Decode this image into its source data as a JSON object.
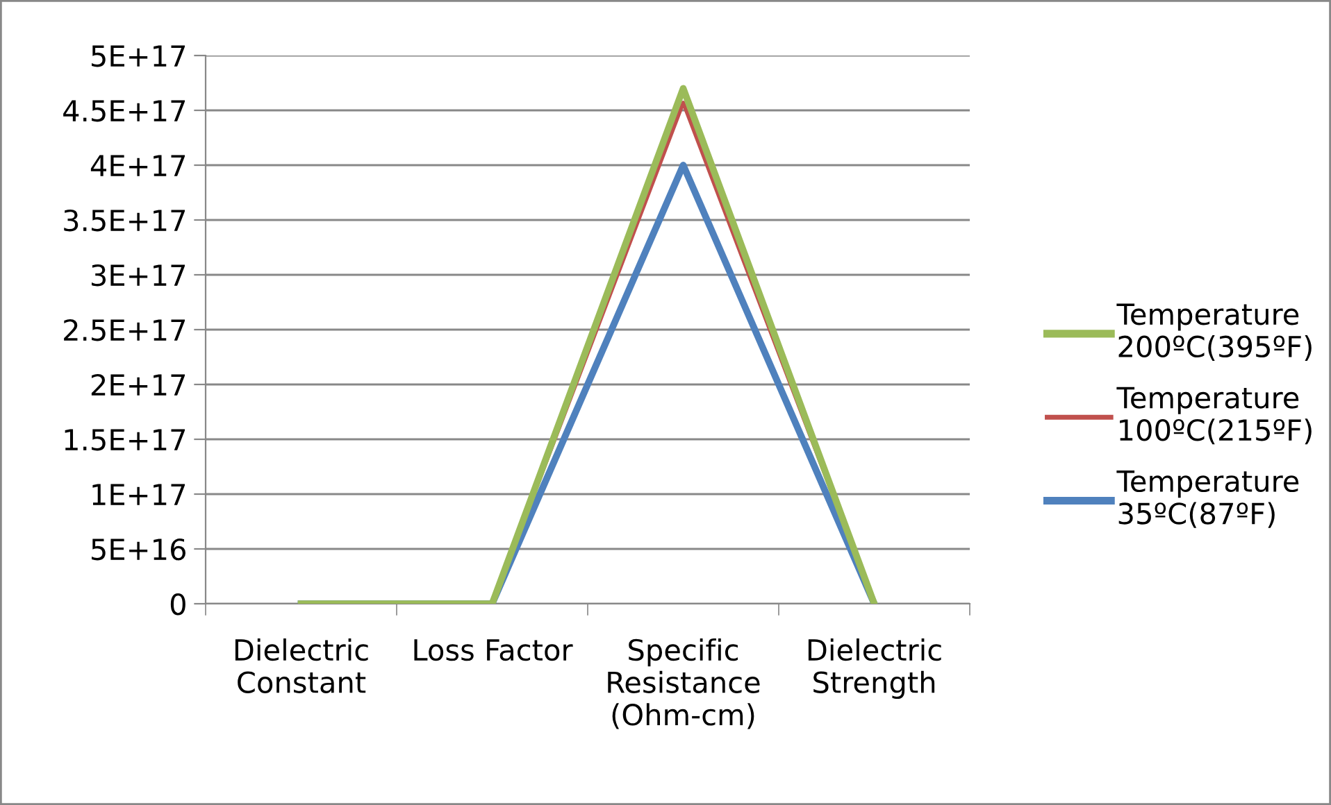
{
  "chart_data": {
    "type": "line",
    "categories": [
      "Dielectric\nConstant",
      "Loss Factor",
      "Specific\nResistance\n(Ohm-cm)",
      "Dielectric\nStrength"
    ],
    "series": [
      {
        "name": "Temperature\n200ºC(395ºF)",
        "color": "#9bbb59",
        "values": [
          0,
          0,
          4.7e+17,
          0
        ]
      },
      {
        "name": "Temperature\n100ºC(215ºF)",
        "color": "#c0504d",
        "values": [
          0,
          0,
          4.57e+17,
          0
        ]
      },
      {
        "name": "Temperature\n35ºC(87ºF)",
        "color": "#4f81bd",
        "values": [
          0,
          0,
          4e+17,
          0
        ]
      }
    ],
    "ylim": [
      0,
      5e+17
    ],
    "yticks": [
      {
        "value": 0,
        "label": "0"
      },
      {
        "value": 5e+16,
        "label": "5E+16"
      },
      {
        "value": 1e+17,
        "label": "1E+17"
      },
      {
        "value": 1.5e+17,
        "label": "1.5E+17"
      },
      {
        "value": 2e+17,
        "label": "2E+17"
      },
      {
        "value": 2.5e+17,
        "label": "2.5E+17"
      },
      {
        "value": 3e+17,
        "label": "3E+17"
      },
      {
        "value": 3.5e+17,
        "label": "3.5E+17"
      },
      {
        "value": 4e+17,
        "label": "4E+17"
      },
      {
        "value": 4.5e+17,
        "label": "4.5E+17"
      },
      {
        "value": 5e+17,
        "label": "5E+17"
      }
    ],
    "grid": "y",
    "legend": "right",
    "marker": "none",
    "line_style": "solid"
  }
}
